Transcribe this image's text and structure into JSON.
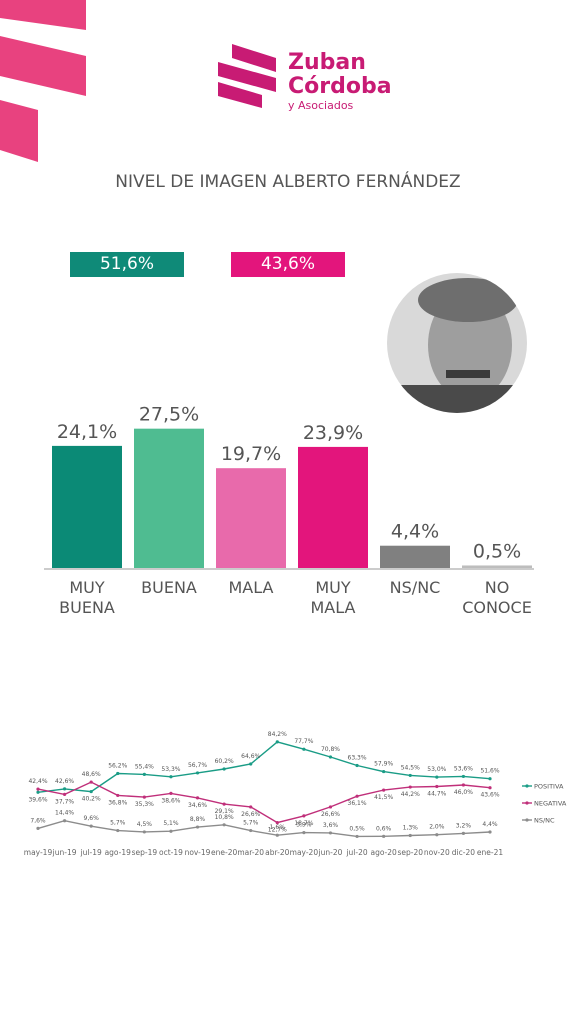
{
  "logo": {
    "name_1": "Zuban",
    "name_2": "Córdoba",
    "subname": "y Asociados"
  },
  "chart_data": [
    {
      "type": "bar",
      "title": "NIVEL DE IMAGEN ALBERTO FERNÁNDEZ",
      "annotations": [
        "51,6%",
        "43,6%"
      ],
      "categories": [
        "MUY BUENA",
        "BUENA",
        "MALA",
        "MUY MALA",
        "NS/NC",
        "NO CONOCE"
      ],
      "values": [
        24.1,
        27.5,
        19.7,
        23.9,
        4.4,
        0.5
      ],
      "value_labels": [
        "24,1%",
        "27,5%",
        "19,7%",
        "23,9%",
        "4,4%",
        "0,5%"
      ],
      "colors": [
        "#0b8a76",
        "#4fbc91",
        "#e86aab",
        "#e3157c",
        "#808080",
        "#bdbdbd"
      ],
      "ylim": [
        0,
        30
      ]
    },
    {
      "type": "line",
      "categories": [
        "may-19",
        "jun-19",
        "jul-19",
        "ago-19",
        "sep-19",
        "oct-19",
        "nov-19",
        "ene-20",
        "mar-20",
        "abr-20",
        "may-20",
        "jun-20",
        "jul-20",
        "ago-20",
        "sep-20",
        "nov-20",
        "dic-20",
        "ene-21"
      ],
      "series": [
        {
          "name": "POSITIVA",
          "color": "#1a9c86",
          "values": [
            39.6,
            42.6,
            40.2,
            56.2,
            55.4,
            53.3,
            56.7,
            60.2,
            64.6,
            84.2,
            77.7,
            70.8,
            63.3,
            57.9,
            54.5,
            53.0,
            53.6,
            51.6
          ],
          "value_labels": [
            "39,6%",
            "42,6%",
            "40,2%",
            "56,2%",
            "55,4%",
            "53,3%",
            "56,7%",
            "60,2%",
            "64,6%",
            "84,2%",
            "77,7%",
            "70,8%",
            "63,3%",
            "57,9%",
            "54,5%",
            "53,0%",
            "53,6%",
            "51,6%"
          ]
        },
        {
          "name": "NEGATIVA",
          "color": "#c02f7a",
          "values": [
            42.4,
            37.7,
            48.6,
            36.8,
            35.3,
            38.6,
            34.6,
            29.1,
            26.6,
            12.7,
            18.7,
            26.6,
            36.1,
            41.5,
            44.2,
            44.7,
            46.0,
            43.6
          ],
          "value_labels": [
            "42,4%",
            "37,7%",
            "48,6%",
            "36,8%",
            "35,3%",
            "38,6%",
            "34,6%",
            "29,1%",
            "26,6%",
            "12,7%",
            "18,7%",
            "26,6%",
            "36,1%",
            "41,5%",
            "44,2%",
            "44,7%",
            "46,0%",
            "43,6%"
          ]
        },
        {
          "name": "NS/NC",
          "color": "#8c8c8c",
          "values": [
            7.6,
            14.4,
            9.6,
            5.7,
            4.5,
            5.1,
            8.8,
            10.8,
            5.7,
            1.6,
            3.9,
            3.6,
            0.5,
            0.6,
            1.3,
            2.0,
            3.2,
            4.4
          ],
          "value_labels": [
            "7,6%",
            "14,4%",
            "9,6%",
            "5,7%",
            "4,5%",
            "5,1%",
            "8,8%",
            "10,8%",
            "5,7%",
            "1,6%",
            "3,9%",
            "3,6%",
            "0,5%",
            "0,6%",
            "1,3%",
            "2,0%",
            "3,2%",
            "4,4%"
          ]
        }
      ],
      "ylim": [
        0,
        100
      ]
    }
  ]
}
